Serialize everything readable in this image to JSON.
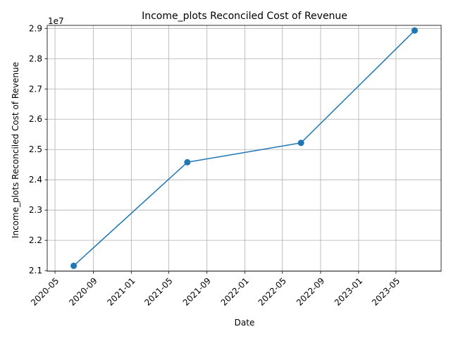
{
  "chart_data": {
    "type": "line",
    "title": "Income_plots Reconciled Cost of Revenue",
    "xlabel": "Date",
    "ylabel": "Income_plots Reconciled Cost of Revenue",
    "y_offset_label": "1e7",
    "x": [
      "2020-06-30",
      "2021-06-30",
      "2022-06-30",
      "2023-06-30"
    ],
    "series": [
      {
        "values": [
          21160000,
          24580000,
          25220000,
          28930000
        ],
        "color": "#1f77b4",
        "marker": "circle"
      }
    ],
    "y_scale_factor": 10000000,
    "ylim": [
      20980000,
      29100000
    ],
    "xlim": [
      "2020-04-06",
      "2023-09-23"
    ],
    "x_ticks": [
      "2020-05",
      "2020-09",
      "2021-01",
      "2021-05",
      "2021-09",
      "2022-01",
      "2022-05",
      "2022-09",
      "2023-01",
      "2023-05"
    ],
    "x_tick_rotation": 45,
    "y_ticks": [
      "2.1",
      "2.2",
      "2.3",
      "2.4",
      "2.5",
      "2.6",
      "2.7",
      "2.8",
      "2.9"
    ],
    "grid": true,
    "grid_color": "#b0b0b0",
    "axes_color": "#000000"
  }
}
